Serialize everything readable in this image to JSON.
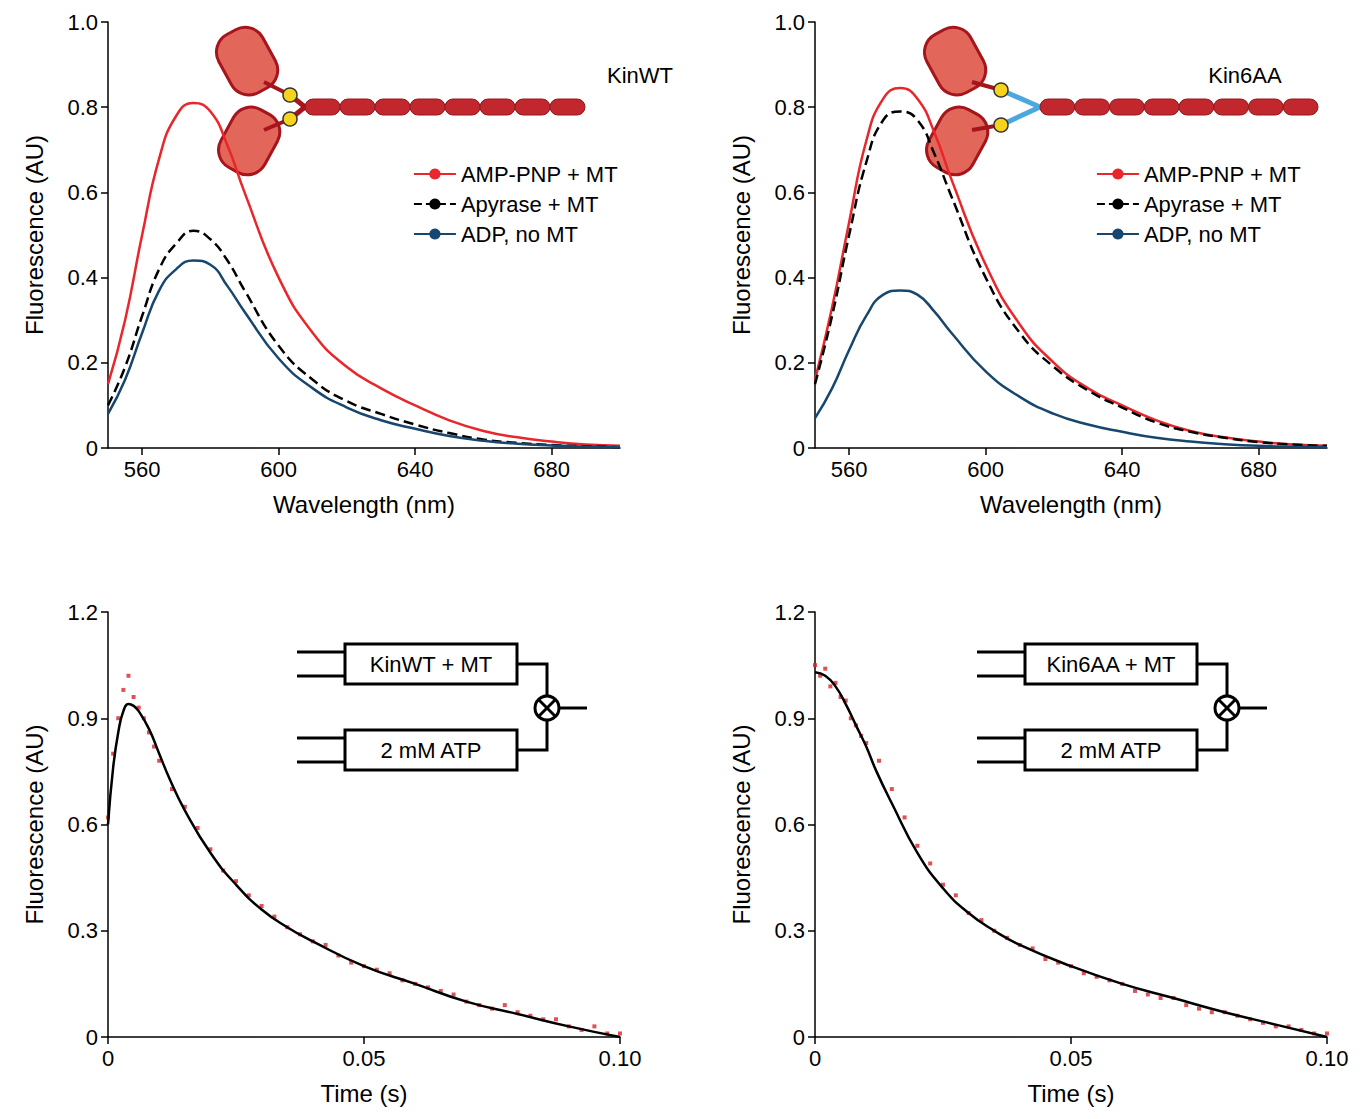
{
  "chart_data": [
    {
      "type": "line",
      "annotations": [
        "KinWT"
      ],
      "x_label": "Wavelength (nm)",
      "y_label": "Fluorescence (AU)",
      "xlim": [
        550,
        700
      ],
      "xticks": [
        560,
        600,
        640,
        680
      ],
      "ylim": [
        0,
        1.0
      ],
      "yticks": [
        0,
        0.2,
        0.4,
        0.6,
        0.8,
        {
          "value": 1.0,
          "label": "1.0"
        }
      ],
      "grid": false,
      "legend": "upper right",
      "x": [
        550,
        555,
        560,
        565,
        570,
        575,
        580,
        585,
        590,
        600,
        610,
        620,
        630,
        640,
        650,
        660,
        670,
        680,
        690,
        700
      ],
      "series": [
        {
          "name": "AMP-PNP + MT",
          "color": "#e8262b",
          "line_style": "solid",
          "values": [
            0.15,
            0.3,
            0.5,
            0.68,
            0.78,
            0.81,
            0.79,
            0.71,
            0.6,
            0.4,
            0.27,
            0.19,
            0.14,
            0.1,
            0.065,
            0.04,
            0.025,
            0.015,
            0.008,
            0.005
          ]
        },
        {
          "name": "Apyrase + MT",
          "color": "#000000",
          "line_style": "dashed",
          "values": [
            0.1,
            0.19,
            0.31,
            0.42,
            0.48,
            0.51,
            0.49,
            0.44,
            0.37,
            0.24,
            0.16,
            0.11,
            0.08,
            0.055,
            0.035,
            0.02,
            0.012,
            0.007,
            0.004,
            0.002
          ]
        },
        {
          "name": "ADP, no MT",
          "color": "#17466e",
          "line_style": "solid",
          "values": [
            0.08,
            0.16,
            0.27,
            0.37,
            0.42,
            0.44,
            0.43,
            0.38,
            0.32,
            0.21,
            0.14,
            0.095,
            0.065,
            0.045,
            0.028,
            0.017,
            0.01,
            0.006,
            0.003,
            0.002
          ]
        }
      ]
    },
    {
      "type": "line",
      "annotations": [
        "Kin6AA"
      ],
      "x_label": "Wavelength (nm)",
      "y_label": "Fluorescence (AU)",
      "xlim": [
        550,
        700
      ],
      "xticks": [
        560,
        600,
        640,
        680
      ],
      "ylim": [
        0,
        1.0
      ],
      "yticks": [
        0,
        0.2,
        0.4,
        0.6,
        0.8,
        {
          "value": 1.0,
          "label": "1.0"
        }
      ],
      "grid": false,
      "legend": "upper right",
      "x": [
        550,
        555,
        560,
        565,
        570,
        575,
        580,
        585,
        590,
        600,
        610,
        620,
        630,
        640,
        650,
        660,
        670,
        680,
        690,
        700
      ],
      "series": [
        {
          "name": "AMP-PNP + MT",
          "color": "#e8262b",
          "line_style": "solid",
          "values": [
            0.16,
            0.33,
            0.53,
            0.72,
            0.82,
            0.845,
            0.82,
            0.74,
            0.63,
            0.43,
            0.29,
            0.2,
            0.14,
            0.1,
            0.065,
            0.04,
            0.025,
            0.015,
            0.008,
            0.005
          ]
        },
        {
          "name": "Apyrase + MT",
          "color": "#000000",
          "line_style": "dashed",
          "values": [
            0.15,
            0.31,
            0.5,
            0.67,
            0.77,
            0.79,
            0.77,
            0.69,
            0.59,
            0.4,
            0.27,
            0.19,
            0.135,
            0.095,
            0.06,
            0.038,
            0.024,
            0.014,
            0.008,
            0.005
          ]
        },
        {
          "name": "ADP, no MT",
          "color": "#17466e",
          "line_style": "solid",
          "values": [
            0.07,
            0.14,
            0.23,
            0.31,
            0.36,
            0.37,
            0.36,
            0.32,
            0.27,
            0.18,
            0.12,
            0.08,
            0.055,
            0.038,
            0.024,
            0.015,
            0.009,
            0.005,
            0.003,
            0.002
          ]
        }
      ]
    },
    {
      "type": "scatter",
      "annotations": [
        "KinWT + MT",
        "2 mM ATP"
      ],
      "x_label": "Time (s)",
      "y_label": "Fluorescence (AU)",
      "xlim": [
        0,
        0.1
      ],
      "xticks": [
        0,
        0.05,
        {
          "value": 0.1,
          "label": "0.10"
        }
      ],
      "ylim": [
        0,
        1.2
      ],
      "yticks": [
        0,
        0.3,
        0.6,
        0.9,
        1.2
      ],
      "grid": false,
      "series": [
        {
          "type": "scatter",
          "color": "#d7262b",
          "marker": "square",
          "x": [
            0,
            0.001,
            0.002,
            0.003,
            0.004,
            0.005,
            0.006,
            0.007,
            0.008,
            0.009,
            0.01,
            0.0125,
            0.015,
            0.0175,
            0.02,
            0.0225,
            0.025,
            0.0275,
            0.03,
            0.0325,
            0.035,
            0.0375,
            0.04,
            0.0425,
            0.045,
            0.0475,
            0.05,
            0.0525,
            0.055,
            0.0575,
            0.06,
            0.0625,
            0.065,
            0.0675,
            0.07,
            0.0725,
            0.075,
            0.0775,
            0.08,
            0.0825,
            0.085,
            0.0875,
            0.09,
            0.0925,
            0.095,
            0.0975,
            0.1
          ],
          "values": [
            0.62,
            0.8,
            0.9,
            0.98,
            1.02,
            0.96,
            0.93,
            0.9,
            0.86,
            0.82,
            0.78,
            0.7,
            0.65,
            0.59,
            0.53,
            0.47,
            0.44,
            0.4,
            0.37,
            0.34,
            0.31,
            0.29,
            0.27,
            0.26,
            0.23,
            0.21,
            0.2,
            0.19,
            0.18,
            0.16,
            0.15,
            0.14,
            0.13,
            0.12,
            0.1,
            0.09,
            0.08,
            0.09,
            0.07,
            0.06,
            0.05,
            0.05,
            0.03,
            0.02,
            0.03,
            0.01,
            0.01
          ]
        },
        {
          "type": "line",
          "color": "#000000",
          "line_style": "solid",
          "x": [
            0,
            0.001,
            0.002,
            0.003,
            0.004,
            0.005,
            0.006,
            0.008,
            0.01,
            0.012,
            0.015,
            0.02,
            0.025,
            0.03,
            0.035,
            0.04,
            0.05,
            0.06,
            0.07,
            0.08,
            0.09,
            0.1
          ],
          "values": [
            0.6,
            0.76,
            0.86,
            0.92,
            0.94,
            0.935,
            0.92,
            0.87,
            0.8,
            0.73,
            0.64,
            0.52,
            0.43,
            0.36,
            0.31,
            0.27,
            0.2,
            0.15,
            0.1,
            0.065,
            0.03,
            0.0
          ]
        }
      ]
    },
    {
      "type": "scatter",
      "annotations": [
        "Kin6AA + MT",
        "2 mM ATP"
      ],
      "x_label": "Time (s)",
      "y_label": "Fluorescence (AU)",
      "xlim": [
        0,
        0.1
      ],
      "xticks": [
        0,
        0.05,
        {
          "value": 0.1,
          "label": "0.10"
        }
      ],
      "ylim": [
        0,
        1.2
      ],
      "yticks": [
        0,
        0.3,
        0.6,
        0.9,
        1.2
      ],
      "grid": false,
      "series": [
        {
          "type": "scatter",
          "color": "#d7262b",
          "marker": "square",
          "x": [
            0,
            0.001,
            0.002,
            0.003,
            0.004,
            0.005,
            0.006,
            0.007,
            0.008,
            0.009,
            0.01,
            0.0125,
            0.015,
            0.0175,
            0.02,
            0.0225,
            0.025,
            0.0275,
            0.03,
            0.0325,
            0.035,
            0.0375,
            0.04,
            0.0425,
            0.045,
            0.0475,
            0.05,
            0.0525,
            0.055,
            0.0575,
            0.06,
            0.0625,
            0.065,
            0.0675,
            0.07,
            0.0725,
            0.075,
            0.0775,
            0.08,
            0.0825,
            0.085,
            0.0875,
            0.09,
            0.0925,
            0.095,
            0.0975,
            0.1
          ],
          "values": [
            1.05,
            1.02,
            1.04,
            0.99,
            1.0,
            0.96,
            0.95,
            0.9,
            0.88,
            0.85,
            0.83,
            0.78,
            0.7,
            0.62,
            0.54,
            0.49,
            0.43,
            0.4,
            0.35,
            0.33,
            0.3,
            0.28,
            0.26,
            0.25,
            0.22,
            0.21,
            0.2,
            0.18,
            0.17,
            0.16,
            0.15,
            0.13,
            0.12,
            0.11,
            0.11,
            0.09,
            0.08,
            0.07,
            0.07,
            0.06,
            0.05,
            0.04,
            0.03,
            0.03,
            0.02,
            0.01,
            0.01
          ]
        },
        {
          "type": "line",
          "color": "#000000",
          "line_style": "solid",
          "x": [
            0,
            0.002,
            0.004,
            0.006,
            0.008,
            0.01,
            0.012,
            0.015,
            0.02,
            0.025,
            0.03,
            0.035,
            0.04,
            0.05,
            0.06,
            0.07,
            0.08,
            0.09,
            0.1
          ],
          "values": [
            1.03,
            1.02,
            0.99,
            0.94,
            0.88,
            0.82,
            0.75,
            0.66,
            0.52,
            0.42,
            0.35,
            0.3,
            0.26,
            0.2,
            0.15,
            0.11,
            0.07,
            0.035,
            0.0
          ]
        }
      ]
    }
  ]
}
